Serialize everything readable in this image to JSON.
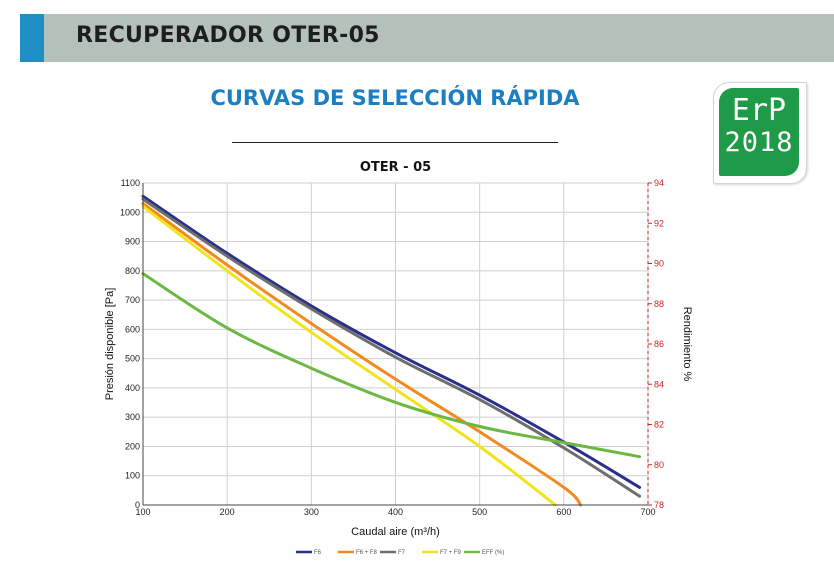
{
  "header": {
    "title": "RECUPERADOR OTER-05"
  },
  "section_title": "CURVAS DE SELECCIÓN RÁPIDA",
  "badge": {
    "line1": "ErP",
    "line2": "2018",
    "color": "#1f9a48"
  },
  "chart_data": {
    "type": "line",
    "title": "OTER - 05",
    "xlabel": "Caudal aire (m³/h)",
    "ylabel": "Presión disponible [Pa]",
    "y2label": "Rendimiento %",
    "xlim": [
      100,
      700
    ],
    "ylim": [
      0,
      1100
    ],
    "y2lim": [
      78,
      94
    ],
    "xticks": [
      100,
      200,
      300,
      400,
      500,
      600,
      700
    ],
    "yticks": [
      0,
      100,
      200,
      300,
      400,
      500,
      600,
      700,
      800,
      900,
      1000,
      1100
    ],
    "y2ticks": [
      78,
      80,
      82,
      84,
      86,
      88,
      90,
      92,
      94
    ],
    "grid": true,
    "legend_position": "bottom",
    "series": [
      {
        "name": "F6",
        "color": "#2a2f8c",
        "axis": "left",
        "x": [
          100,
          200,
          300,
          400,
          500,
          600,
          690
        ],
        "y": [
          1055,
          860,
          680,
          520,
          375,
          215,
          60
        ]
      },
      {
        "name": "F6 + F8",
        "color": "#f28a1e",
        "axis": "left",
        "x": [
          100,
          200,
          300,
          400,
          500,
          600,
          620
        ],
        "y": [
          1030,
          820,
          620,
          430,
          250,
          60,
          0
        ]
      },
      {
        "name": "F7",
        "color": "#6e6e70",
        "axis": "left",
        "x": [
          100,
          200,
          300,
          400,
          500,
          600,
          690
        ],
        "y": [
          1045,
          850,
          670,
          505,
          360,
          195,
          30
        ]
      },
      {
        "name": "F7 + F9",
        "color": "#f2e41c",
        "axis": "left",
        "x": [
          100,
          200,
          300,
          400,
          500,
          590
        ],
        "y": [
          1020,
          800,
          590,
          395,
          200,
          0
        ]
      },
      {
        "name": "EFF (%)",
        "color": "#6cb843",
        "axis": "right",
        "x": [
          100,
          200,
          300,
          400,
          500,
          600,
          690
        ],
        "y": [
          89.5,
          86.8,
          84.8,
          83.1,
          81.9,
          81.1,
          80.4
        ]
      }
    ]
  }
}
